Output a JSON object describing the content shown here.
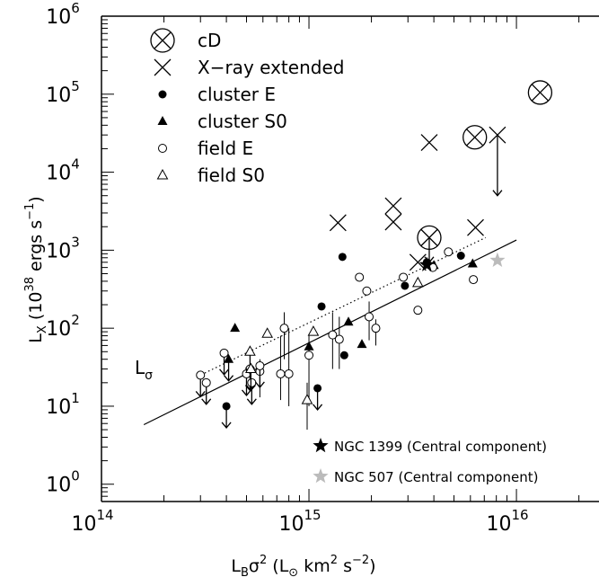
{
  "chart_data": {
    "type": "scatter",
    "xscale": "log",
    "yscale": "log",
    "xlim": [
      100000000000000.0,
      2.5e+16
    ],
    "ylim": [
      0.6,
      1000000.0
    ],
    "grid": false,
    "legend_placement": "top-left",
    "xlabel": {
      "base": "L",
      "sub": "B",
      "mid": "σ",
      "sup": "2",
      "tail1": " (L",
      "sun": "⊙",
      "tail2": " km",
      "sup2": "2",
      "tail3": " s",
      "sup3": "−2",
      "close": ")"
    },
    "ylabel": {
      "base": "L",
      "sub": "X",
      "pre": " (10",
      "sup": "38",
      "mid": " ergs s",
      "sup2": "−1",
      "close": ")"
    },
    "x_ticks": [
      {
        "base": "10",
        "exp": "14",
        "value": 100000000000000.0
      },
      {
        "base": "10",
        "exp": "15",
        "value": 1000000000000000.0
      },
      {
        "base": "10",
        "exp": "16",
        "value": 1e+16
      }
    ],
    "y_ticks": [
      {
        "base": "10",
        "exp": "0",
        "value": 1
      },
      {
        "base": "10",
        "exp": "1",
        "value": 10
      },
      {
        "base": "10",
        "exp": "2",
        "value": 100
      },
      {
        "base": "10",
        "exp": "3",
        "value": 1000
      },
      {
        "base": "10",
        "exp": "4",
        "value": 10000
      },
      {
        "base": "10",
        "exp": "5",
        "value": 100000
      },
      {
        "base": "10",
        "exp": "6",
        "value": 1000000
      }
    ],
    "legend": [
      {
        "marker": "cD",
        "label": "cD"
      },
      {
        "marker": "X-ray extended",
        "label": "X−ray extended"
      },
      {
        "marker": "cluster E",
        "label": "cluster E"
      },
      {
        "marker": "cluster S0",
        "label": "cluster S0"
      },
      {
        "marker": "field E",
        "label": "field E"
      },
      {
        "marker": "field S0",
        "label": "field S0"
      }
    ],
    "series": [
      {
        "name": "cD",
        "points": [
          {
            "x": 3800000000000000.0,
            "y": 1450,
            "limit": true,
            "lo": 700
          },
          {
            "x": 6300000000000000.0,
            "y": 28000
          },
          {
            "x": 1.3e+16,
            "y": 105000
          }
        ]
      },
      {
        "name": "X-ray extended",
        "points": [
          {
            "x": 1380000000000000.0,
            "y": 2250
          },
          {
            "x": 2550000000000000.0,
            "y": 3700
          },
          {
            "x": 2550000000000000.0,
            "y": 2300
          },
          {
            "x": 3350000000000000.0,
            "y": 700
          },
          {
            "x": 3800000000000000.0,
            "y": 24000
          },
          {
            "x": 6350000000000000.0,
            "y": 1950
          },
          {
            "x": 8100000000000000.0,
            "y": 30000,
            "limit": true,
            "lo": 5000
          }
        ]
      },
      {
        "name": "cluster E",
        "points": [
          {
            "x": 400000000000000.0,
            "y": 10,
            "limit": true
          },
          {
            "x": 1100000000000000.0,
            "y": 17,
            "limit": true
          },
          {
            "x": 1150000000000000.0,
            "y": 190
          },
          {
            "x": 1450000000000000.0,
            "y": 820
          },
          {
            "x": 1480000000000000.0,
            "y": 45
          },
          {
            "x": 2900000000000000.0,
            "y": 350
          },
          {
            "x": 3700000000000000.0,
            "y": 700
          },
          {
            "x": 5400000000000000.0,
            "y": 850
          }
        ]
      },
      {
        "name": "cluster S0",
        "points": [
          {
            "x": 410000000000000.0,
            "y": 40,
            "limit": true
          },
          {
            "x": 440000000000000.0,
            "y": 100
          },
          {
            "x": 1000000000000000.0,
            "y": 58
          },
          {
            "x": 1550000000000000.0,
            "y": 120
          },
          {
            "x": 1800000000000000.0,
            "y": 62
          },
          {
            "x": 4000000000000000.0,
            "y": 640
          },
          {
            "x": 6150000000000000.0,
            "y": 670
          }
        ]
      },
      {
        "name": "field E",
        "points": [
          {
            "x": 300000000000000.0,
            "y": 25,
            "limit": true
          },
          {
            "x": 320000000000000.0,
            "y": 20,
            "limit": true
          },
          {
            "x": 390000000000000.0,
            "y": 48,
            "limit": true
          },
          {
            "x": 500000000000000.0,
            "y": 26,
            "limit": true
          },
          {
            "x": 520000000000000.0,
            "y": 30,
            "limit": true
          },
          {
            "x": 530000000000000.0,
            "y": 20,
            "limit": true
          },
          {
            "x": 580000000000000.0,
            "y": 28,
            "lo": 13,
            "hi": 40
          },
          {
            "x": 580000000000000.0,
            "y": 33,
            "limit": true
          },
          {
            "x": 730000000000000.0,
            "y": 26,
            "lo": 12,
            "hi": 80
          },
          {
            "x": 760000000000000.0,
            "y": 100,
            "lo": 40,
            "hi": 160
          },
          {
            "x": 800000000000000.0,
            "y": 26,
            "lo": 10,
            "hi": 100
          },
          {
            "x": 1000000000000000.0,
            "y": 45,
            "lo": 10,
            "hi": 80
          },
          {
            "x": 1300000000000000.0,
            "y": 82,
            "lo": 30,
            "hi": 160
          },
          {
            "x": 1400000000000000.0,
            "y": 72,
            "lo": 30,
            "hi": 140
          },
          {
            "x": 1750000000000000.0,
            "y": 450
          },
          {
            "x": 1900000000000000.0,
            "y": 300
          },
          {
            "x": 1950000000000000.0,
            "y": 140,
            "lo": 70,
            "hi": 220
          },
          {
            "x": 2100000000000000.0,
            "y": 100,
            "lo": 60,
            "hi": 130
          },
          {
            "x": 2850000000000000.0,
            "y": 450
          },
          {
            "x": 3350000000000000.0,
            "y": 170
          },
          {
            "x": 3950000000000000.0,
            "y": 600
          },
          {
            "x": 4700000000000000.0,
            "y": 950
          },
          {
            "x": 6200000000000000.0,
            "y": 420
          }
        ]
      },
      {
        "name": "field S0",
        "points": [
          {
            "x": 520000000000000.0,
            "y": 50,
            "limit": true
          },
          {
            "x": 525000000000000.0,
            "y": 30,
            "limit": true
          },
          {
            "x": 630000000000000.0,
            "y": 85
          },
          {
            "x": 980000000000000.0,
            "y": 12,
            "lo": 5,
            "hi": 20
          },
          {
            "x": 1050000000000000.0,
            "y": 90
          },
          {
            "x": 3350000000000000.0,
            "y": 380
          }
        ]
      }
    ],
    "special_points": [
      {
        "name": "NGC 1399 (Central component)",
        "x": 3700000000000000.0,
        "y": 650,
        "color": "#000000"
      },
      {
        "name": "NGC 507 (Central component)",
        "x": 8100000000000000.0,
        "y": 740,
        "color": "#bbbbbb"
      }
    ],
    "lines": [
      {
        "label": "",
        "style": "solid",
        "x": [
          160000000000000.0,
          1e+16
        ],
        "y": [
          5.8,
          1350
        ]
      },
      {
        "label": {
          "base": "L",
          "sub": "σ"
        },
        "style": "dotted",
        "x": [
          290000000000000.0,
          7100000000000000.0
        ],
        "y": [
          24,
          1450
        ]
      }
    ],
    "annotations": [
      {
        "name": "NGC 1399 (Central component)",
        "label": "NGC 1399 (Central component)",
        "symbol_color": "#000000"
      },
      {
        "name": "NGC 507 (Central component)",
        "label": "NGC 507 (Central component)",
        "symbol_color": "#bbbbbb"
      }
    ]
  }
}
